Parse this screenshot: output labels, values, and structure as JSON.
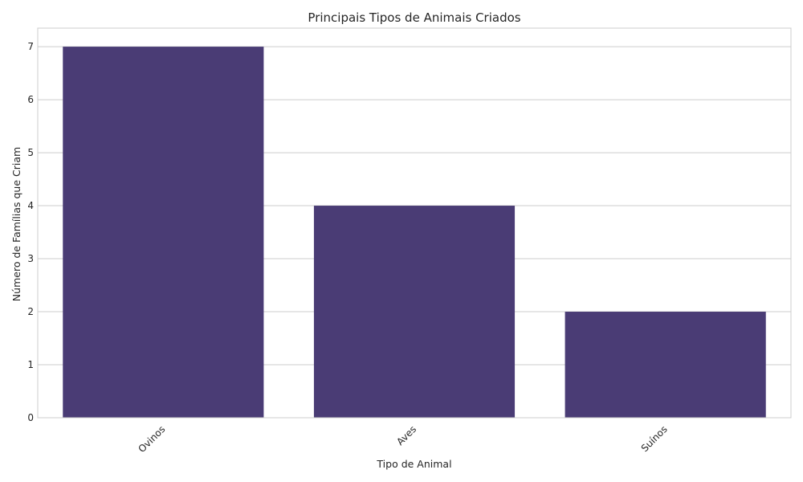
{
  "chart_data": {
    "type": "bar",
    "title": "Principais Tipos de Animais Criados",
    "xlabel": "Tipo de Animal",
    "ylabel": "Número de Famílias que Criam",
    "categories": [
      "Ovinos",
      "Aves",
      "Suínos"
    ],
    "values": [
      7,
      4,
      2
    ],
    "ylim": [
      0,
      7.35
    ],
    "yticks": [
      "0",
      "1",
      "2",
      "3",
      "4",
      "5",
      "6",
      "7"
    ],
    "grid": true,
    "bar_color": "#4a3c75"
  }
}
